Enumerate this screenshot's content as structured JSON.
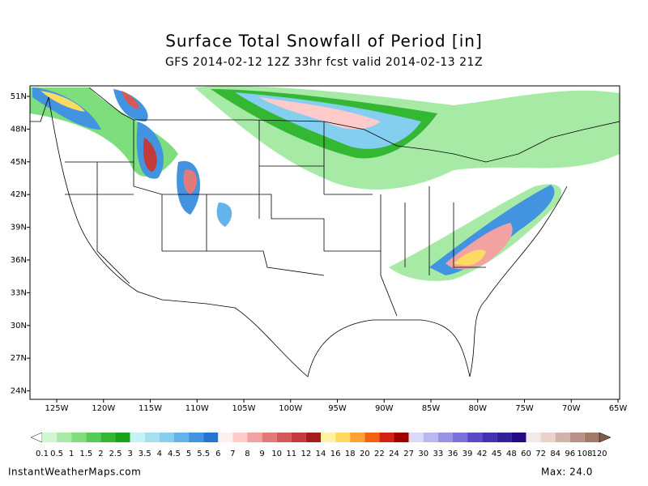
{
  "title": "Surface Total Snowfall of Period [in]",
  "subtitle": "GFS 2014-02-12 12Z 33hr fcst valid 2014-02-13 21Z",
  "latitude_labels": [
    "51N",
    "48N",
    "45N",
    "42N",
    "39N",
    "36N",
    "33N",
    "30N",
    "27N",
    "24N"
  ],
  "longitude_labels": [
    "125W",
    "120W",
    "115W",
    "110W",
    "105W",
    "100W",
    "95W",
    "90W",
    "85W",
    "80W",
    "75W",
    "70W",
    "65W"
  ],
  "colorbar": {
    "labels": [
      0.1,
      0.5,
      1,
      1.5,
      2,
      2.5,
      3,
      3.5,
      4,
      4.5,
      5,
      5.5,
      6,
      7,
      8,
      9,
      10,
      11,
      12,
      14,
      16,
      18,
      20,
      22,
      24,
      27,
      30,
      33,
      36,
      39,
      42,
      45,
      48,
      60,
      72,
      84,
      96,
      108,
      120
    ],
    "colors": [
      "#ffffff",
      "#d2f5d2",
      "#a6eaa6",
      "#7ede7e",
      "#56cc56",
      "#34b834",
      "#1aa21a",
      "#c4f2f8",
      "#a4e2f2",
      "#84cef0",
      "#62b4ea",
      "#4294e0",
      "#2474d2",
      "#fff0f0",
      "#ffcaca",
      "#f2a2a2",
      "#e27a7a",
      "#d25a5a",
      "#c23a3a",
      "#a81c1c",
      "#fff2a2",
      "#ffda62",
      "#ffa232",
      "#f26212",
      "#d22212",
      "#a00000",
      "#dadaf8",
      "#bab8f0",
      "#9a92e8",
      "#7a72d8",
      "#5a4ac8",
      "#4232b0",
      "#322298",
      "#220a88",
      "#f2eaea",
      "#e8d2ca",
      "#d2b2aa",
      "#ba928a",
      "#a27a6a",
      "#825a4a"
    ]
  },
  "footer": "InstantWeatherMaps.com",
  "max": "Max:  24.0"
}
